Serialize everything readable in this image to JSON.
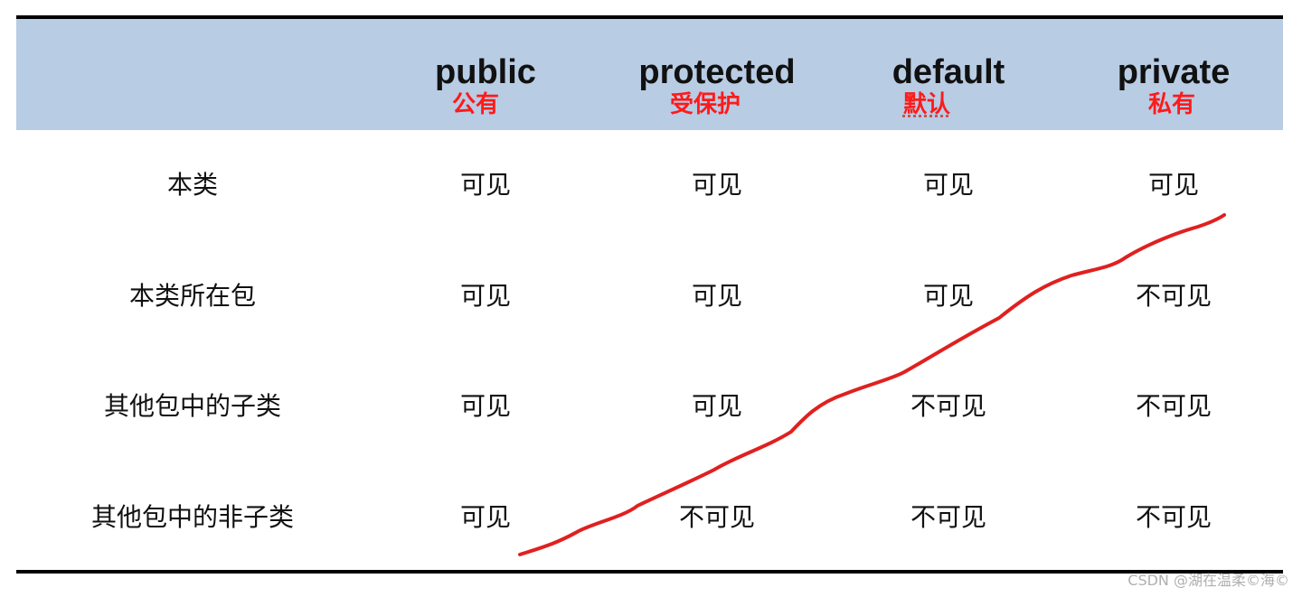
{
  "columns": [
    {
      "en": "public",
      "zh": "公有"
    },
    {
      "en": "protected",
      "zh": "受保护"
    },
    {
      "en": "default",
      "zh": "默认"
    },
    {
      "en": "private",
      "zh": "私有"
    }
  ],
  "rows": [
    {
      "label": "本类",
      "cells": [
        "可见",
        "可见",
        "可见",
        "可见"
      ]
    },
    {
      "label": "本类所在包",
      "cells": [
        "可见",
        "可见",
        "可见",
        "不可见"
      ]
    },
    {
      "label": "其他包中的子类",
      "cells": [
        "可见",
        "可见",
        "不可见",
        "不可见"
      ]
    },
    {
      "label": "其他包中的非子类",
      "cells": [
        "可见",
        "不可见",
        "不可见",
        "不可见"
      ]
    }
  ],
  "watermark": "CSDN @湖在温柔©海©",
  "colors": {
    "header_band": "#b8cce4",
    "header_zh": "#ff1a1a",
    "annotation_line": "#e02020"
  }
}
